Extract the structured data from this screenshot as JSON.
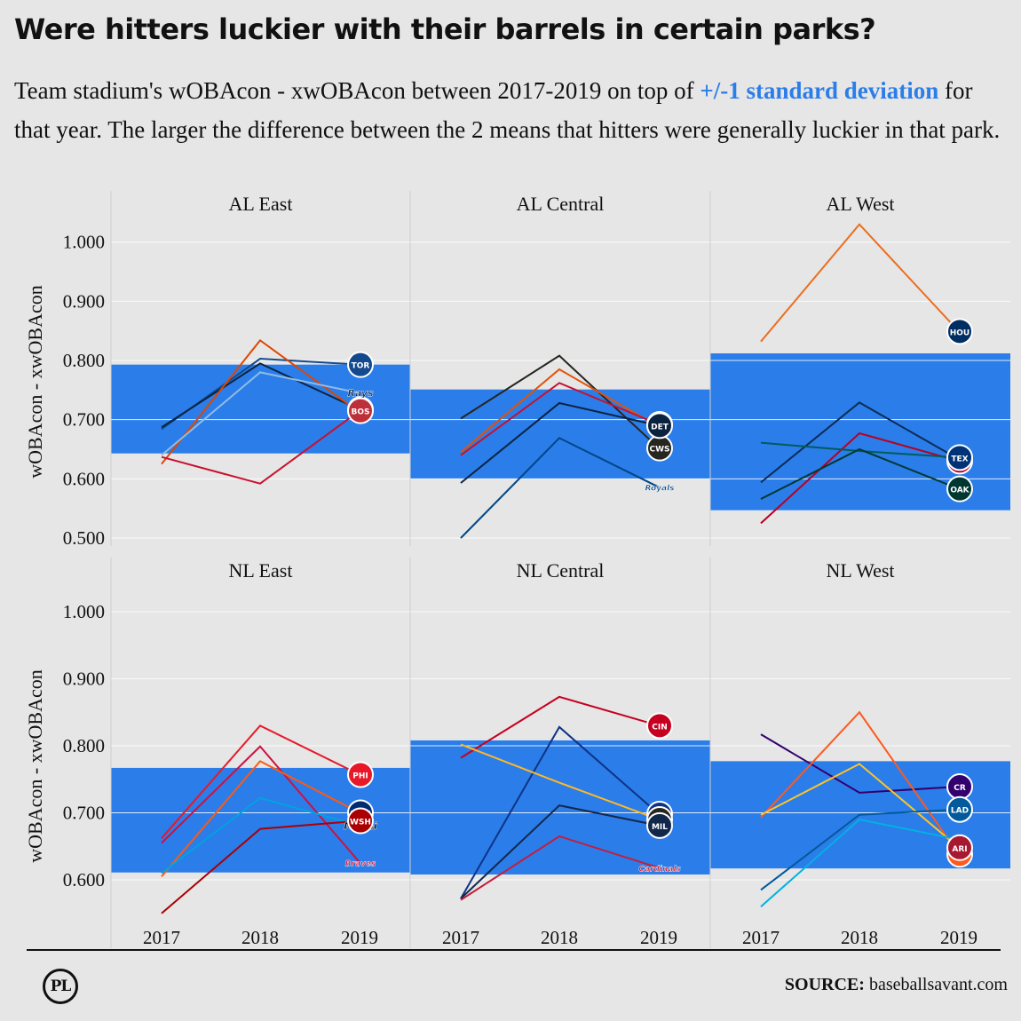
{
  "title": "Were hitters luckier with their barrels in certain parks?",
  "subtitle": {
    "part1": "Team stadium's wOBAcon - xwOBAcon between 2017-2019 on top of ",
    "highlight": "+/-1 standard deviation",
    "part2": " for that year. The larger the difference between the 2 means that hitters were generally luckier in that park."
  },
  "footer": {
    "logo": "PL",
    "source_label": "SOURCE:",
    "source_value": " baseballsavant.com"
  },
  "colors": {
    "band": "#2b7de9",
    "background": "#e6e6e6",
    "grid": "#ffffff"
  },
  "chart_data": [
    {
      "type": "line",
      "title": "AL East",
      "ylabel": "wOBAcon - xwOBAcon",
      "x": [
        "2017",
        "2018",
        "2019"
      ],
      "ylim": [
        0.49,
        1.04
      ],
      "yticks": [
        0.5,
        0.6,
        0.7,
        0.8,
        0.9,
        1.0
      ],
      "yticklabels": [
        "0.500",
        "0.600",
        "0.700",
        "0.800",
        "0.900",
        "1.000"
      ],
      "band": [
        0.643,
        0.793
      ],
      "series": [
        {
          "values": [
            0.684,
            0.803,
            0.793
          ],
          "color": "#134a8e",
          "logo": "TOR",
          "logo_color": "#134a8e"
        },
        {
          "values": [
            0.687,
            0.795,
            0.717
          ],
          "color": "#0c2340",
          "logo": "BAL",
          "logo_color": "#df4601"
        },
        {
          "values": [
            0.625,
            0.834,
            0.712
          ],
          "color": "#df4601",
          "logo": "",
          "logo_color": ""
        },
        {
          "values": [
            0.64,
            0.78,
            0.745
          ],
          "color": "#8fbce6",
          "logo": "Rays",
          "logo_color": "#092c5c"
        },
        {
          "values": [
            0.637,
            0.592,
            0.715
          ],
          "color": "#c8102e",
          "logo": "BOS",
          "logo_color": "#bd3039"
        }
      ]
    },
    {
      "type": "line",
      "title": "AL Central",
      "x": [
        "2017",
        "2018",
        "2019"
      ],
      "ylim": [
        0.49,
        1.04
      ],
      "yticks": [
        0.5,
        0.6,
        0.7,
        0.8,
        0.9,
        1.0
      ],
      "band": [
        0.6,
        0.751
      ],
      "series": [
        {
          "values": [
            0.702,
            0.808,
            0.652
          ],
          "color": "#27251f",
          "logo": "CWS",
          "logo_color": "#27251f"
        },
        {
          "values": [
            0.645,
            0.785,
            0.688
          ],
          "color": "#e35205",
          "logo": "",
          "logo_color": ""
        },
        {
          "values": [
            0.64,
            0.762,
            0.692
          ],
          "color": "#c8102e",
          "logo": "MIN",
          "logo_color": "#002b5c"
        },
        {
          "values": [
            0.593,
            0.728,
            0.69
          ],
          "color": "#0c2340",
          "logo": "DET",
          "logo_color": "#0c2340"
        },
        {
          "values": [
            0.5,
            0.669,
            0.586
          ],
          "color": "#004687",
          "logo": "Royals",
          "logo_color": "#004687"
        }
      ]
    },
    {
      "type": "line",
      "title": "AL West",
      "x": [
        "2017",
        "2018",
        "2019"
      ],
      "ylim": [
        0.49,
        1.04
      ],
      "yticks": [
        0.5,
        0.6,
        0.7,
        0.8,
        0.9,
        1.0
      ],
      "band": [
        0.547,
        0.812
      ],
      "series": [
        {
          "values": [
            0.832,
            1.03,
            0.849
          ],
          "color": "#eb6e1f",
          "logo": "HOU",
          "logo_color": "#002d62"
        },
        {
          "values": [
            0.594,
            0.729,
            0.633
          ],
          "color": "#0c2c56",
          "logo": "SEA",
          "logo_color": "#0c2c56"
        },
        {
          "values": [
            0.525,
            0.677,
            0.63
          ],
          "color": "#ba0021",
          "logo": "LAA",
          "logo_color": "#ba0021"
        },
        {
          "values": [
            0.661,
            0.647,
            0.636
          ],
          "color": "#005c5c",
          "logo": "TEX",
          "logo_color": "#003278"
        },
        {
          "values": [
            0.566,
            0.65,
            0.583
          ],
          "color": "#003831",
          "logo": "OAK",
          "logo_color": "#003831"
        }
      ]
    },
    {
      "type": "line",
      "title": "NL East",
      "ylabel": "wOBAcon - xwOBAcon",
      "x": [
        "2017",
        "2018",
        "2019"
      ],
      "ylim": [
        0.54,
        1.04
      ],
      "yticks": [
        0.6,
        0.7,
        0.8,
        0.9,
        1.0
      ],
      "yticklabels": [
        "0.600",
        "0.700",
        "0.800",
        "0.900",
        "1.000"
      ],
      "band": [
        0.611,
        0.767
      ],
      "series": [
        {
          "values": [
            0.662,
            0.83,
            0.757
          ],
          "color": "#e81828",
          "logo": "PHI",
          "logo_color": "#e81828"
        },
        {
          "values": [
            0.655,
            0.799,
            0.626
          ],
          "color": "#ce1141",
          "logo": "Braves",
          "logo_color": "#ce1141"
        },
        {
          "values": [
            0.605,
            0.777,
            0.7
          ],
          "color": "#ff5910",
          "logo": "NYM",
          "logo_color": "#002d72"
        },
        {
          "values": [
            0.61,
            0.722,
            0.681
          ],
          "color": "#00a3e0",
          "logo": "Miami",
          "logo_color": "#000000"
        },
        {
          "values": [
            0.55,
            0.676,
            0.688
          ],
          "color": "#ab0003",
          "logo": "WSH",
          "logo_color": "#ab0003"
        }
      ]
    },
    {
      "type": "line",
      "title": "NL Central",
      "x": [
        "2017",
        "2018",
        "2019"
      ],
      "ylim": [
        0.54,
        1.04
      ],
      "yticks": [
        0.6,
        0.7,
        0.8,
        0.9,
        1.0
      ],
      "band": [
        0.608,
        0.808
      ],
      "series": [
        {
          "values": [
            0.782,
            0.873,
            0.83
          ],
          "color": "#c6011f",
          "logo": "CIN",
          "logo_color": "#c6011f"
        },
        {
          "values": [
            0.572,
            0.828,
            0.698
          ],
          "color": "#0e3386",
          "logo": "CHC",
          "logo_color": "#0e3386"
        },
        {
          "values": [
            0.802,
            0.745,
            0.69
          ],
          "color": "#fdb827",
          "logo": "PIT",
          "logo_color": "#27251f"
        },
        {
          "values": [
            0.572,
            0.711,
            0.681
          ],
          "color": "#12284b",
          "logo": "MIL",
          "logo_color": "#12284b"
        },
        {
          "values": [
            0.57,
            0.665,
            0.618
          ],
          "color": "#c41e3a",
          "logo": "Cardinals",
          "logo_color": "#c41e3a"
        }
      ]
    },
    {
      "type": "line",
      "title": "NL West",
      "x": [
        "2017",
        "2018",
        "2019"
      ],
      "ylim": [
        0.54,
        1.04
      ],
      "yticks": [
        0.6,
        0.7,
        0.8,
        0.9,
        1.0
      ],
      "band": [
        0.617,
        0.777
      ],
      "series": [
        {
          "values": [
            0.817,
            0.73,
            0.739
          ],
          "color": "#33006f",
          "logo": "CR",
          "logo_color": "#33006f"
        },
        {
          "values": [
            0.693,
            0.85,
            0.638
          ],
          "color": "#fd5a1e",
          "logo": "SF",
          "logo_color": "#fd5a1e"
        },
        {
          "values": [
            0.697,
            0.773,
            0.648
          ],
          "color": "#ffc425",
          "logo": "ARI",
          "logo_color": "#a71930"
        },
        {
          "values": [
            0.585,
            0.697,
            0.705
          ],
          "color": "#005a9c",
          "logo": "LAD",
          "logo_color": "#005a9c"
        },
        {
          "values": [
            0.56,
            0.69,
            0.66
          ],
          "color": "#00b2e3",
          "logo": "",
          "logo_color": ""
        }
      ]
    }
  ]
}
